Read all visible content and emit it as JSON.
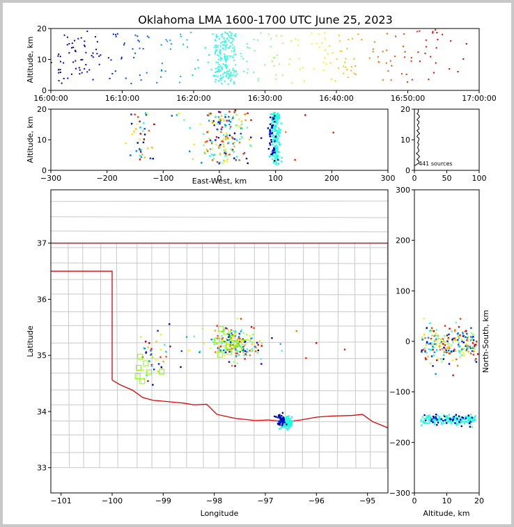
{
  "chart_data": {
    "type": "scatter",
    "title": "Oklahoma LMA 1600-1700 UTC June 25, 2023",
    "source_count_label": "441 sources",
    "panels": {
      "time_height": {
        "ylabel": "Altitude, km",
        "ylim": [
          0,
          20
        ],
        "yticks": [
          "0",
          "10",
          "20"
        ],
        "xticks": [
          "16:00:00",
          "16:10:00",
          "16:20:00",
          "16:30:00",
          "16:40:00",
          "16:50:00",
          "17:00:00"
        ]
      },
      "ew_height": {
        "ylabel": "Altitude, km",
        "xlabel": "East-West, km",
        "xlim": [
          -300,
          300
        ],
        "ylim": [
          0,
          20
        ],
        "xticks": [
          "−300",
          "−200",
          "−100",
          "0",
          "100",
          "200",
          "300"
        ],
        "yticks": [
          "0",
          "10",
          "20"
        ]
      },
      "histogram": {
        "xlim": [
          0,
          100
        ],
        "ylim": [
          0,
          20
        ],
        "xticks": [
          "0",
          "50",
          "100"
        ],
        "yticks": [
          "0",
          "10",
          "20"
        ]
      },
      "plan_view": {
        "xlabel": "Longitude",
        "ylabel": "Latitude",
        "xlim": [
          -101.2,
          -94.6
        ],
        "ylim": [
          32.55,
          37.95
        ],
        "xticks": [
          "−101",
          "−100",
          "−99",
          "−98",
          "−97",
          "−96",
          "−95"
        ],
        "yticks": [
          "33",
          "34",
          "35",
          "36",
          "37"
        ]
      },
      "ns_height": {
        "xlabel": "Altitude, km",
        "ylabel": "North-South, km",
        "xlim": [
          0,
          20
        ],
        "ylim": [
          -300,
          300
        ],
        "xticks": [
          "0",
          "10",
          "20"
        ],
        "yticks": [
          "−300",
          "−200",
          "−100",
          "0",
          "100",
          "200",
          "300"
        ]
      }
    },
    "time_colormap": "jet",
    "stations": [
      {
        "lon": -97.87,
        "lat": 35.47
      },
      {
        "lon": -97.77,
        "lat": 35.42
      },
      {
        "lon": -97.64,
        "lat": 35.31
      },
      {
        "lon": -97.57,
        "lat": 35.21
      },
      {
        "lon": -97.42,
        "lat": 35.24
      },
      {
        "lon": -97.94,
        "lat": 35.27
      },
      {
        "lon": -97.82,
        "lat": 35.21
      },
      {
        "lon": -97.72,
        "lat": 35.16
      },
      {
        "lon": -97.52,
        "lat": 35.12
      },
      {
        "lon": -97.89,
        "lat": 35.01
      },
      {
        "lon": -97.71,
        "lat": 35.06
      },
      {
        "lon": -97.61,
        "lat": 35.22
      },
      {
        "lon": -99.45,
        "lat": 34.98
      },
      {
        "lon": -99.34,
        "lat": 34.86
      },
      {
        "lon": -99.48,
        "lat": 34.78
      },
      {
        "lon": -99.28,
        "lat": 34.7
      },
      {
        "lon": -99.5,
        "lat": 34.63
      },
      {
        "lon": -99.41,
        "lat": 34.54
      },
      {
        "lon": -99.03,
        "lat": 34.71
      }
    ]
  }
}
